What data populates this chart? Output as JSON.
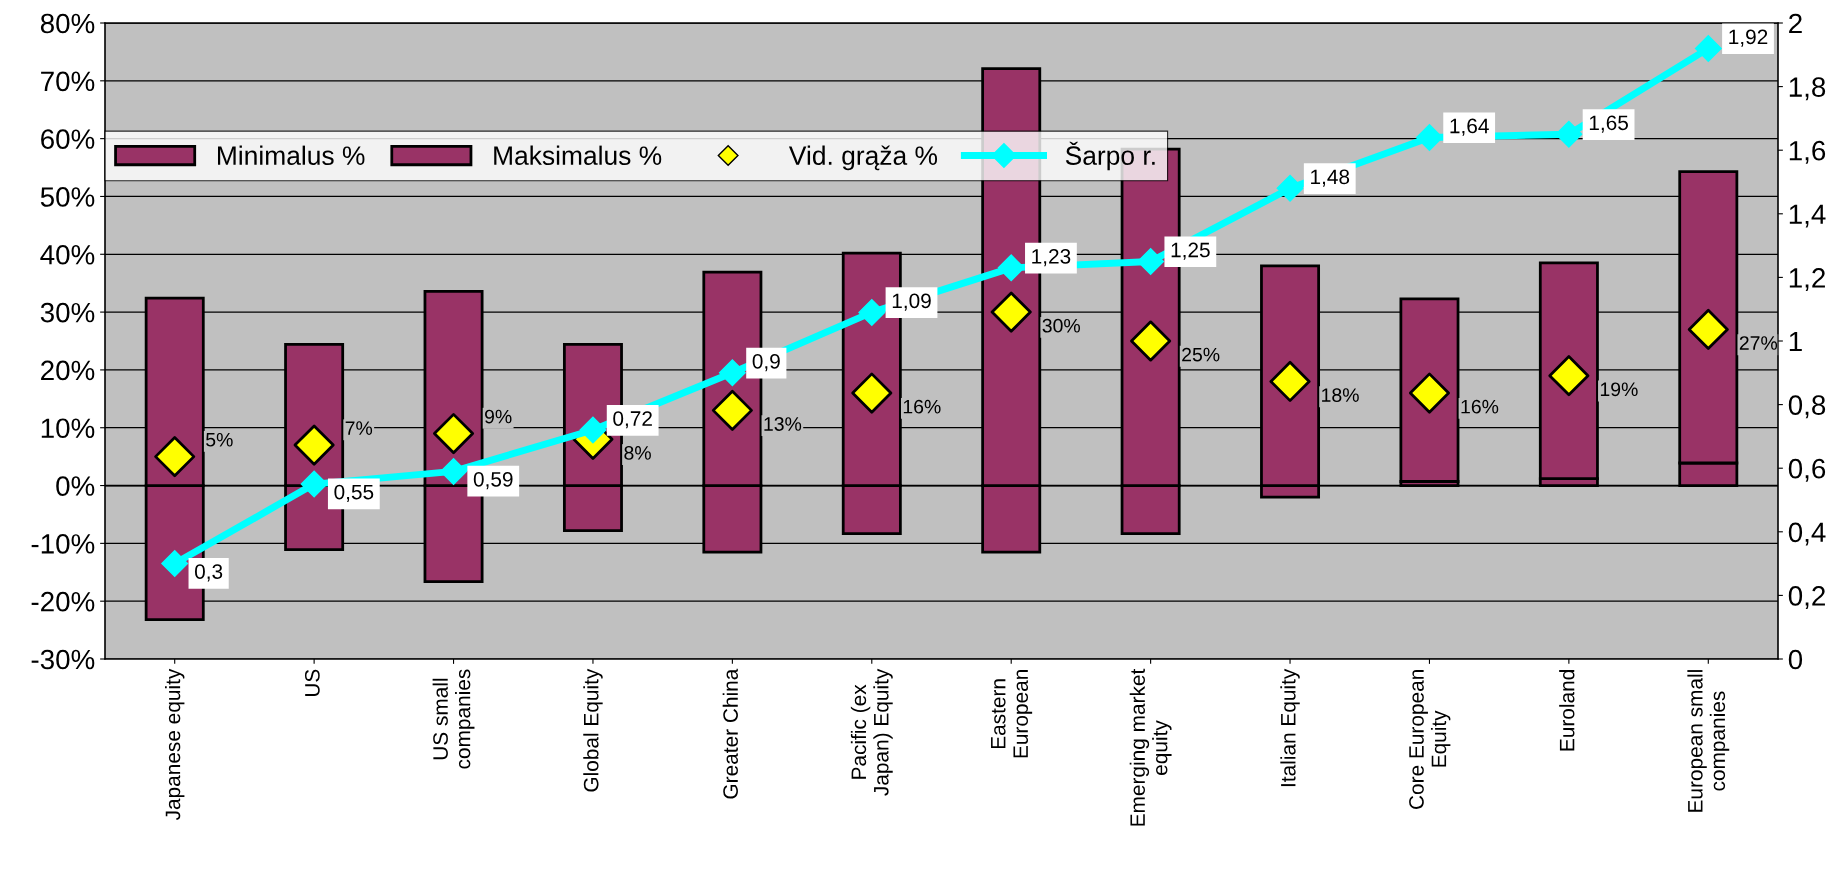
{
  "chart_data": {
    "type": "bar",
    "categories": [
      "Japanese equity",
      "US",
      "US small\ncompanies",
      "Global Equity",
      "Greater China",
      "Pacific (ex\nJapan) Equity",
      "Eastern\nEuropean",
      "Emerging market\nequity",
      "Italian Equity",
      "Core European\nEquity",
      "Euroland",
      "European small\ncompanies"
    ],
    "series": [
      {
        "name": "Minimalus %",
        "color": "#993366",
        "values": [
          -23.2,
          -11.1,
          -16.6,
          -7.8,
          -11.5,
          -8.3,
          -11.5,
          -8.3,
          -2.0,
          0.7,
          1.2,
          3.9
        ]
      },
      {
        "name": "Maksimalus %",
        "color": "#993366",
        "values": [
          32.4,
          24.4,
          33.6,
          24.4,
          36.9,
          40.2,
          72.1,
          58.2,
          38.0,
          31.6,
          37.3,
          50.4
        ]
      },
      {
        "name": "Vid. grąža %",
        "type": "scatter",
        "color": "#ffff00",
        "marker": "diamond",
        "values": [
          5,
          7,
          9,
          8,
          13,
          16,
          30,
          25,
          18,
          16,
          19,
          27
        ],
        "value_labels": [
          "5%",
          "7%",
          "9%",
          "8%",
          "13%",
          "16%",
          "30%",
          "25%",
          "18%",
          "16%",
          "19%",
          "27%"
        ]
      },
      {
        "name": "Šarpo r.",
        "type": "line",
        "axis": "y2",
        "color": "#00ffff",
        "marker": "diamond",
        "values": [
          0.3,
          0.55,
          0.59,
          0.72,
          0.9,
          1.09,
          1.23,
          1.25,
          1.48,
          1.64,
          1.65,
          1.92
        ],
        "value_labels": [
          "0,3",
          "0,55",
          "0,59",
          "0,72",
          "0,9",
          "1,09",
          "1,23",
          "1,25",
          "1,48",
          "1,64",
          "1,65",
          "1,92"
        ]
      }
    ],
    "ylim": [
      -30,
      80
    ],
    "yticks": [
      {
        "value": -30,
        "label": "-30%"
      },
      {
        "value": -20,
        "label": "-20%"
      },
      {
        "value": -10,
        "label": "-10%"
      },
      {
        "value": 0,
        "label": "0%"
      },
      {
        "value": 10,
        "label": "10%"
      },
      {
        "value": 20,
        "label": "20%"
      },
      {
        "value": 30,
        "label": "30%"
      },
      {
        "value": 40,
        "label": "40%"
      },
      {
        "value": 50,
        "label": "50%"
      },
      {
        "value": 60,
        "label": "60%"
      },
      {
        "value": 70,
        "label": "70%"
      },
      {
        "value": 80,
        "label": "80%"
      }
    ],
    "y2lim": [
      0,
      2
    ],
    "y2ticks": [
      0,
      {
        "value": 0.2,
        "label": "0,2"
      },
      {
        "value": 0.4,
        "label": "0,4"
      },
      {
        "value": 0.6,
        "label": "0,6"
      },
      {
        "value": 0.8,
        "label": "0,8"
      },
      1,
      {
        "value": 1.2,
        "label": "1,2"
      },
      {
        "value": 1.4,
        "label": "1,4"
      },
      {
        "value": 1.6,
        "label": "1,6"
      },
      {
        "value": 1.8,
        "label": "1,8"
      },
      2
    ],
    "stacked": true,
    "grid": "y",
    "legend": "top left"
  }
}
